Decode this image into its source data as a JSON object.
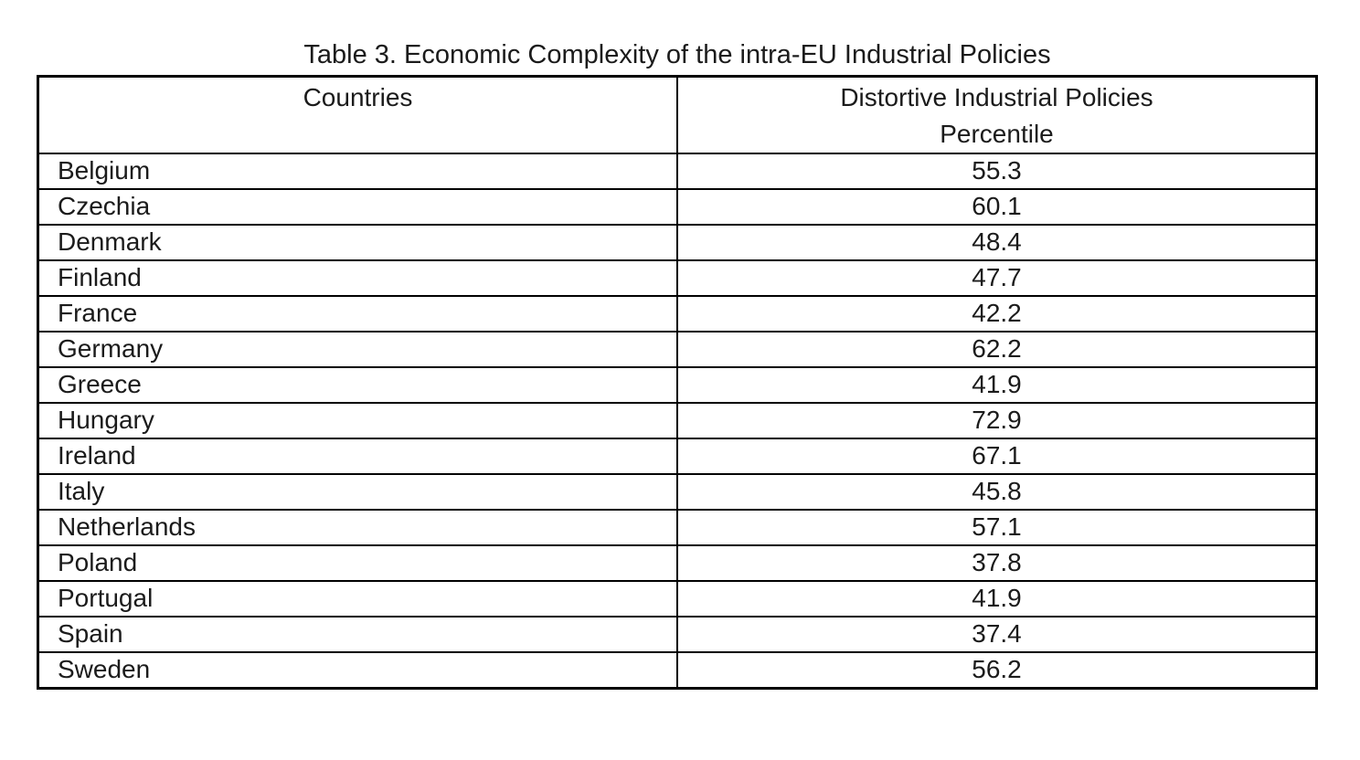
{
  "title": "Table 3. Economic Complexity of the intra-EU Industrial Policies",
  "table": {
    "header": {
      "countries": "Countries",
      "policies_line1": "Distortive Industrial Policies",
      "policies_line2": "Percentile"
    },
    "rows": [
      {
        "country": "Belgium",
        "value": "55.3"
      },
      {
        "country": "Czechia",
        "value": "60.1"
      },
      {
        "country": "Denmark",
        "value": "48.4"
      },
      {
        "country": "Finland",
        "value": "47.7"
      },
      {
        "country": "France",
        "value": "42.2"
      },
      {
        "country": "Germany",
        "value": "62.2"
      },
      {
        "country": "Greece",
        "value": "41.9"
      },
      {
        "country": "Hungary",
        "value": "72.9"
      },
      {
        "country": "Ireland",
        "value": "67.1"
      },
      {
        "country": "Italy",
        "value": "45.8"
      },
      {
        "country": "Netherlands",
        "value": "57.1"
      },
      {
        "country": "Poland",
        "value": "37.8"
      },
      {
        "country": "Portugal",
        "value": "41.9"
      },
      {
        "country": "Spain",
        "value": "37.4"
      },
      {
        "country": "Sweden",
        "value": "56.2"
      }
    ]
  },
  "chart_data": {
    "type": "table",
    "title": "Table 3. Economic Complexity of the intra-EU Industrial Policies",
    "columns": [
      "Countries",
      "Distortive Industrial Policies Percentile"
    ],
    "categories": [
      "Belgium",
      "Czechia",
      "Denmark",
      "Finland",
      "France",
      "Germany",
      "Greece",
      "Hungary",
      "Ireland",
      "Italy",
      "Netherlands",
      "Poland",
      "Portugal",
      "Spain",
      "Sweden"
    ],
    "values": [
      55.3,
      60.1,
      48.4,
      47.7,
      42.2,
      62.2,
      41.9,
      72.9,
      67.1,
      45.8,
      57.1,
      37.8,
      41.9,
      37.4,
      56.2
    ]
  },
  "colors": {
    "border": "#000000",
    "text": "#1b1b1b",
    "background": "#ffffff"
  }
}
